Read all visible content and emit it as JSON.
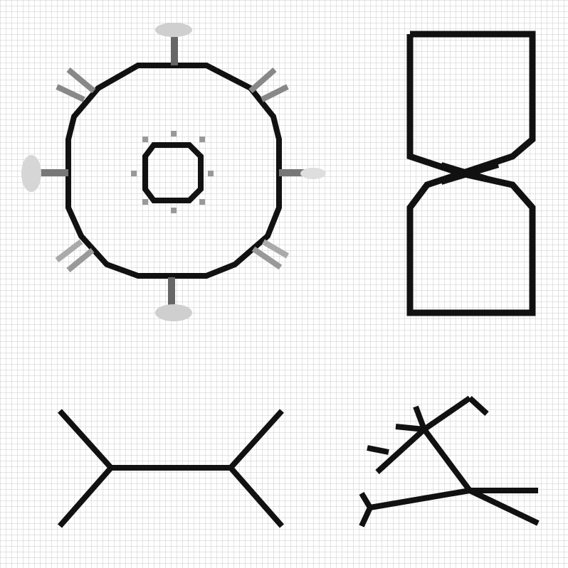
{
  "colors": {
    "background": "#ffffff",
    "grid_line": "#c8c8c8",
    "ink": "#111111",
    "mid_gray": "#7a7a7a",
    "light_gray": "#b4b4b4"
  },
  "figures": [
    {
      "name": "gear-with-spokes",
      "description_icon": "gear-icon"
    },
    {
      "name": "hourglass",
      "description_icon": "hourglass-icon"
    },
    {
      "name": "h-bridge-shape",
      "description_icon": "bond-diagram-icon"
    },
    {
      "name": "triangle-with-tails",
      "description_icon": "molecule-icon"
    }
  ]
}
